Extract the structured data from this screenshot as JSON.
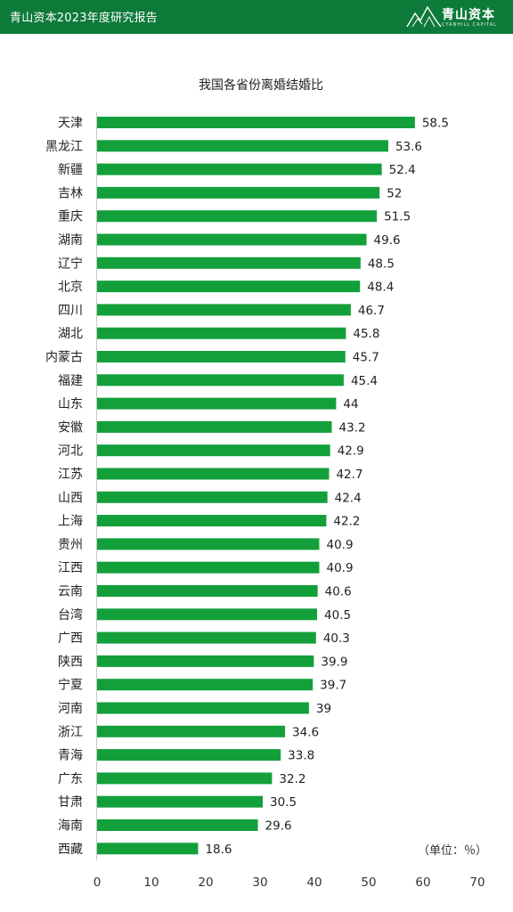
{
  "header": {
    "title": "青山资本2023年度研究报告",
    "logo_cn": "青山资本",
    "logo_en": "CYANHILL CAPITAL",
    "bg_color": "#0e7a3a"
  },
  "chart_data": {
    "type": "bar",
    "orientation": "horizontal",
    "title": "我国各省份离婚结婚比",
    "unit_note": "（单位：％）",
    "bar_color": "#13a03b",
    "xlim": [
      0,
      70
    ],
    "xticks": [
      0,
      10,
      20,
      30,
      40,
      50,
      60,
      70
    ],
    "categories": [
      "天津",
      "黑龙江",
      "新疆",
      "吉林",
      "重庆",
      "湖南",
      "辽宁",
      "北京",
      "四川",
      "湖北",
      "内蒙古",
      "福建",
      "山东",
      "安徽",
      "河北",
      "江苏",
      "山西",
      "上海",
      "贵州",
      "江西",
      "云南",
      "台湾",
      "广西",
      "陕西",
      "宁夏",
      "河南",
      "浙江",
      "青海",
      "广东",
      "甘肃",
      "海南",
      "西藏"
    ],
    "values": [
      58.5,
      53.6,
      52.4,
      52,
      51.5,
      49.6,
      48.5,
      48.4,
      46.7,
      45.8,
      45.7,
      45.4,
      44,
      43.2,
      42.9,
      42.7,
      42.4,
      42.2,
      40.9,
      40.9,
      40.6,
      40.5,
      40.3,
      39.9,
      39.7,
      39,
      34.6,
      33.8,
      32.2,
      30.5,
      29.6,
      18.6
    ],
    "value_labels": [
      "58.5",
      "53.6",
      "52.4",
      "52",
      "51.5",
      "49.6",
      "48.5",
      "48.4",
      "46.7",
      "45.8",
      "45.7",
      "45.4",
      "44",
      "43.2",
      "42.9",
      "42.7",
      "42.4",
      "42.2",
      "40.9",
      "40.9",
      "40.6",
      "40.5",
      "40.3",
      "39.9",
      "39.7",
      "39",
      "34.6",
      "33.8",
      "32.2",
      "30.5",
      "29.6",
      "18.6"
    ]
  }
}
